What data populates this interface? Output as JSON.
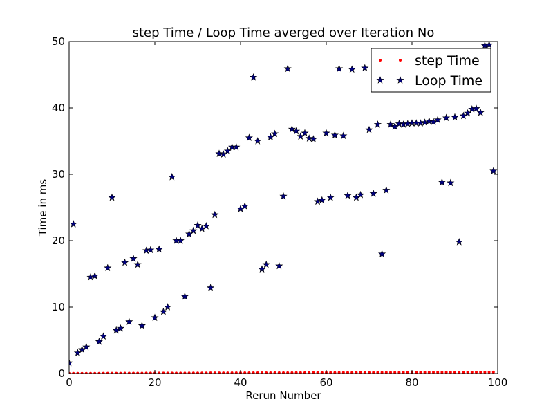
{
  "chart_data": {
    "type": "scatter",
    "title": "step Time / Loop Time averged over Iteration No",
    "xlabel": "Rerun Number",
    "ylabel": "Time in ms",
    "xlim": [
      0,
      100
    ],
    "ylim": [
      0,
      50
    ],
    "xticks": [
      "0",
      "20",
      "40",
      "60",
      "80",
      "100"
    ],
    "yticks": [
      "0",
      "10",
      "20",
      "30",
      "40",
      "50"
    ],
    "legend_position": "top-right",
    "grid": false,
    "series": [
      {
        "name": "step Time",
        "marker": "dot",
        "color": "#ff0000",
        "x": [
          0,
          1,
          2,
          3,
          4,
          5,
          6,
          7,
          8,
          9,
          10,
          11,
          12,
          13,
          14,
          15,
          16,
          17,
          18,
          19,
          20,
          21,
          22,
          23,
          24,
          25,
          26,
          27,
          28,
          29,
          30,
          31,
          32,
          33,
          34,
          35,
          36,
          37,
          38,
          39,
          40,
          41,
          42,
          43,
          44,
          45,
          46,
          47,
          48,
          49,
          50,
          51,
          52,
          53,
          54,
          55,
          56,
          57,
          58,
          59,
          60,
          61,
          62,
          63,
          64,
          65,
          66,
          67,
          68,
          69,
          70,
          71,
          72,
          73,
          74,
          75,
          76,
          77,
          78,
          79,
          80,
          81,
          82,
          83,
          84,
          85,
          86,
          87,
          88,
          89,
          90,
          91,
          92,
          93,
          94,
          95,
          96,
          97,
          98,
          99
        ],
        "y": [
          0.02,
          0.02,
          0.02,
          0.03,
          0.03,
          0.03,
          0.03,
          0.03,
          0.04,
          0.04,
          0.04,
          0.04,
          0.04,
          0.05,
          0.05,
          0.05,
          0.05,
          0.05,
          0.06,
          0.06,
          0.06,
          0.06,
          0.06,
          0.07,
          0.07,
          0.07,
          0.07,
          0.07,
          0.08,
          0.08,
          0.08,
          0.08,
          0.08,
          0.09,
          0.09,
          0.09,
          0.09,
          0.09,
          0.1,
          0.1,
          0.1,
          0.1,
          0.1,
          0.11,
          0.11,
          0.11,
          0.11,
          0.11,
          0.12,
          0.12,
          0.12,
          0.12,
          0.12,
          0.13,
          0.13,
          0.13,
          0.13,
          0.13,
          0.14,
          0.14,
          0.14,
          0.14,
          0.14,
          0.15,
          0.15,
          0.15,
          0.15,
          0.15,
          0.16,
          0.16,
          0.16,
          0.16,
          0.16,
          0.17,
          0.17,
          0.17,
          0.17,
          0.17,
          0.18,
          0.18,
          0.18,
          0.18,
          0.18,
          0.19,
          0.19,
          0.19,
          0.19,
          0.19,
          0.2,
          0.2,
          0.2,
          0.2,
          0.2,
          0.21,
          0.21,
          0.21,
          0.21,
          0.21,
          0.22,
          0.22
        ]
      },
      {
        "name": "Loop Time",
        "marker": "star",
        "color": "#000080",
        "x": [
          0,
          1,
          2,
          3,
          4,
          5,
          6,
          7,
          8,
          9,
          10,
          11,
          12,
          13,
          14,
          15,
          16,
          17,
          18,
          19,
          20,
          21,
          22,
          23,
          24,
          25,
          26,
          27,
          28,
          29,
          30,
          31,
          32,
          33,
          34,
          35,
          36,
          37,
          38,
          39,
          40,
          41,
          42,
          43,
          44,
          45,
          46,
          47,
          48,
          49,
          50,
          51,
          52,
          53,
          54,
          55,
          56,
          57,
          58,
          59,
          60,
          61,
          62,
          63,
          64,
          65,
          66,
          67,
          68,
          69,
          70,
          71,
          72,
          73,
          74,
          75,
          76,
          77,
          78,
          79,
          80,
          81,
          82,
          83,
          84,
          85,
          86,
          87,
          88,
          89,
          90,
          91,
          92,
          93,
          94,
          95,
          96,
          97,
          98,
          99
        ],
        "y": [
          1.6,
          22.5,
          3.1,
          3.6,
          4.0,
          14.5,
          14.7,
          4.8,
          5.6,
          15.9,
          26.5,
          6.5,
          6.8,
          16.7,
          7.8,
          17.3,
          16.4,
          7.2,
          18.5,
          18.6,
          8.4,
          18.7,
          9.3,
          10.0,
          29.6,
          20.0,
          20.0,
          11.6,
          21.0,
          21.5,
          22.3,
          21.8,
          22.2,
          12.9,
          23.9,
          33.1,
          33.0,
          33.5,
          34.1,
          34.1,
          24.8,
          25.2,
          35.5,
          44.6,
          35.0,
          15.7,
          16.4,
          35.6,
          36.1,
          16.2,
          26.7,
          45.9,
          36.8,
          36.5,
          35.7,
          36.2,
          35.4,
          35.3,
          25.9,
          26.1,
          36.2,
          26.5,
          35.9,
          45.9,
          35.8,
          26.8,
          45.8,
          26.5,
          26.9,
          46.0,
          36.7,
          27.1,
          37.5,
          18.0,
          27.6,
          37.5,
          37.2,
          37.6,
          37.5,
          37.6,
          37.7,
          37.7,
          37.7,
          37.8,
          38.0,
          37.9,
          38.2,
          28.8,
          38.5,
          28.7,
          38.6,
          19.8,
          38.8,
          39.2,
          39.8,
          39.9,
          39.3,
          49.4,
          49.5,
          30.5
        ]
      }
    ]
  }
}
